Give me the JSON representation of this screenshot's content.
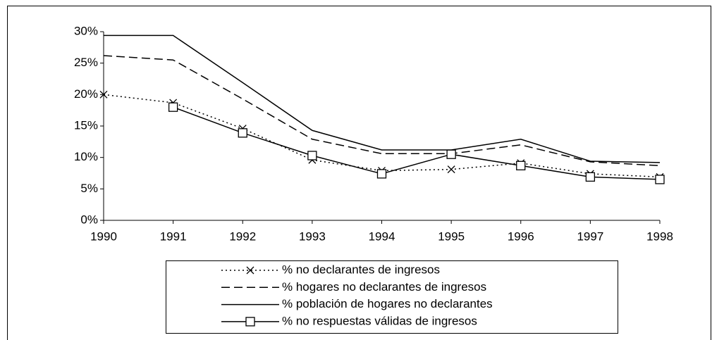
{
  "chart_data": {
    "type": "line",
    "categories": [
      "1990",
      "1991",
      "1992",
      "1993",
      "1994",
      "1995",
      "1996",
      "1997",
      "1998"
    ],
    "series": [
      {
        "name": "% no declarantes de ingresos",
        "color": "#000000",
        "dash": "dotted",
        "marker": "x",
        "values": [
          20,
          18.7,
          14.6,
          9.6,
          7.9,
          8.1,
          9.1,
          7.4,
          6.9
        ]
      },
      {
        "name": "% hogares no declarantes de ingresos",
        "color": "#000000",
        "dash": "dashed",
        "marker": "none",
        "values": [
          26.2,
          25.5,
          19.3,
          12.9,
          10.6,
          10.6,
          12,
          9.3,
          8.7
        ]
      },
      {
        "name": "% población de hogares no declarantes",
        "color": "#000000",
        "dash": "solid",
        "marker": "none",
        "values": [
          29.4,
          29.4,
          21.9,
          14.3,
          11.2,
          11.2,
          12.9,
          9.4,
          9.2
        ]
      },
      {
        "name": "% no respuestas válidas de ingresos",
        "color": "#000000",
        "dash": "solid",
        "marker": "square",
        "values": [
          null,
          18,
          13.9,
          10.3,
          7.4,
          10.5,
          8.7,
          6.9,
          6.5
        ]
      }
    ],
    "ylim": [
      0,
      30
    ],
    "yticks": [
      {
        "value": 0,
        "label": "0%"
      },
      {
        "value": 5,
        "label": "5%"
      },
      {
        "value": 10,
        "label": "10%"
      },
      {
        "value": 15,
        "label": "15%"
      },
      {
        "value": 20,
        "label": "20%"
      },
      {
        "value": 25,
        "label": "25%"
      },
      {
        "value": 30,
        "label": "30%"
      }
    ],
    "grid": false,
    "legend": "bottom"
  }
}
